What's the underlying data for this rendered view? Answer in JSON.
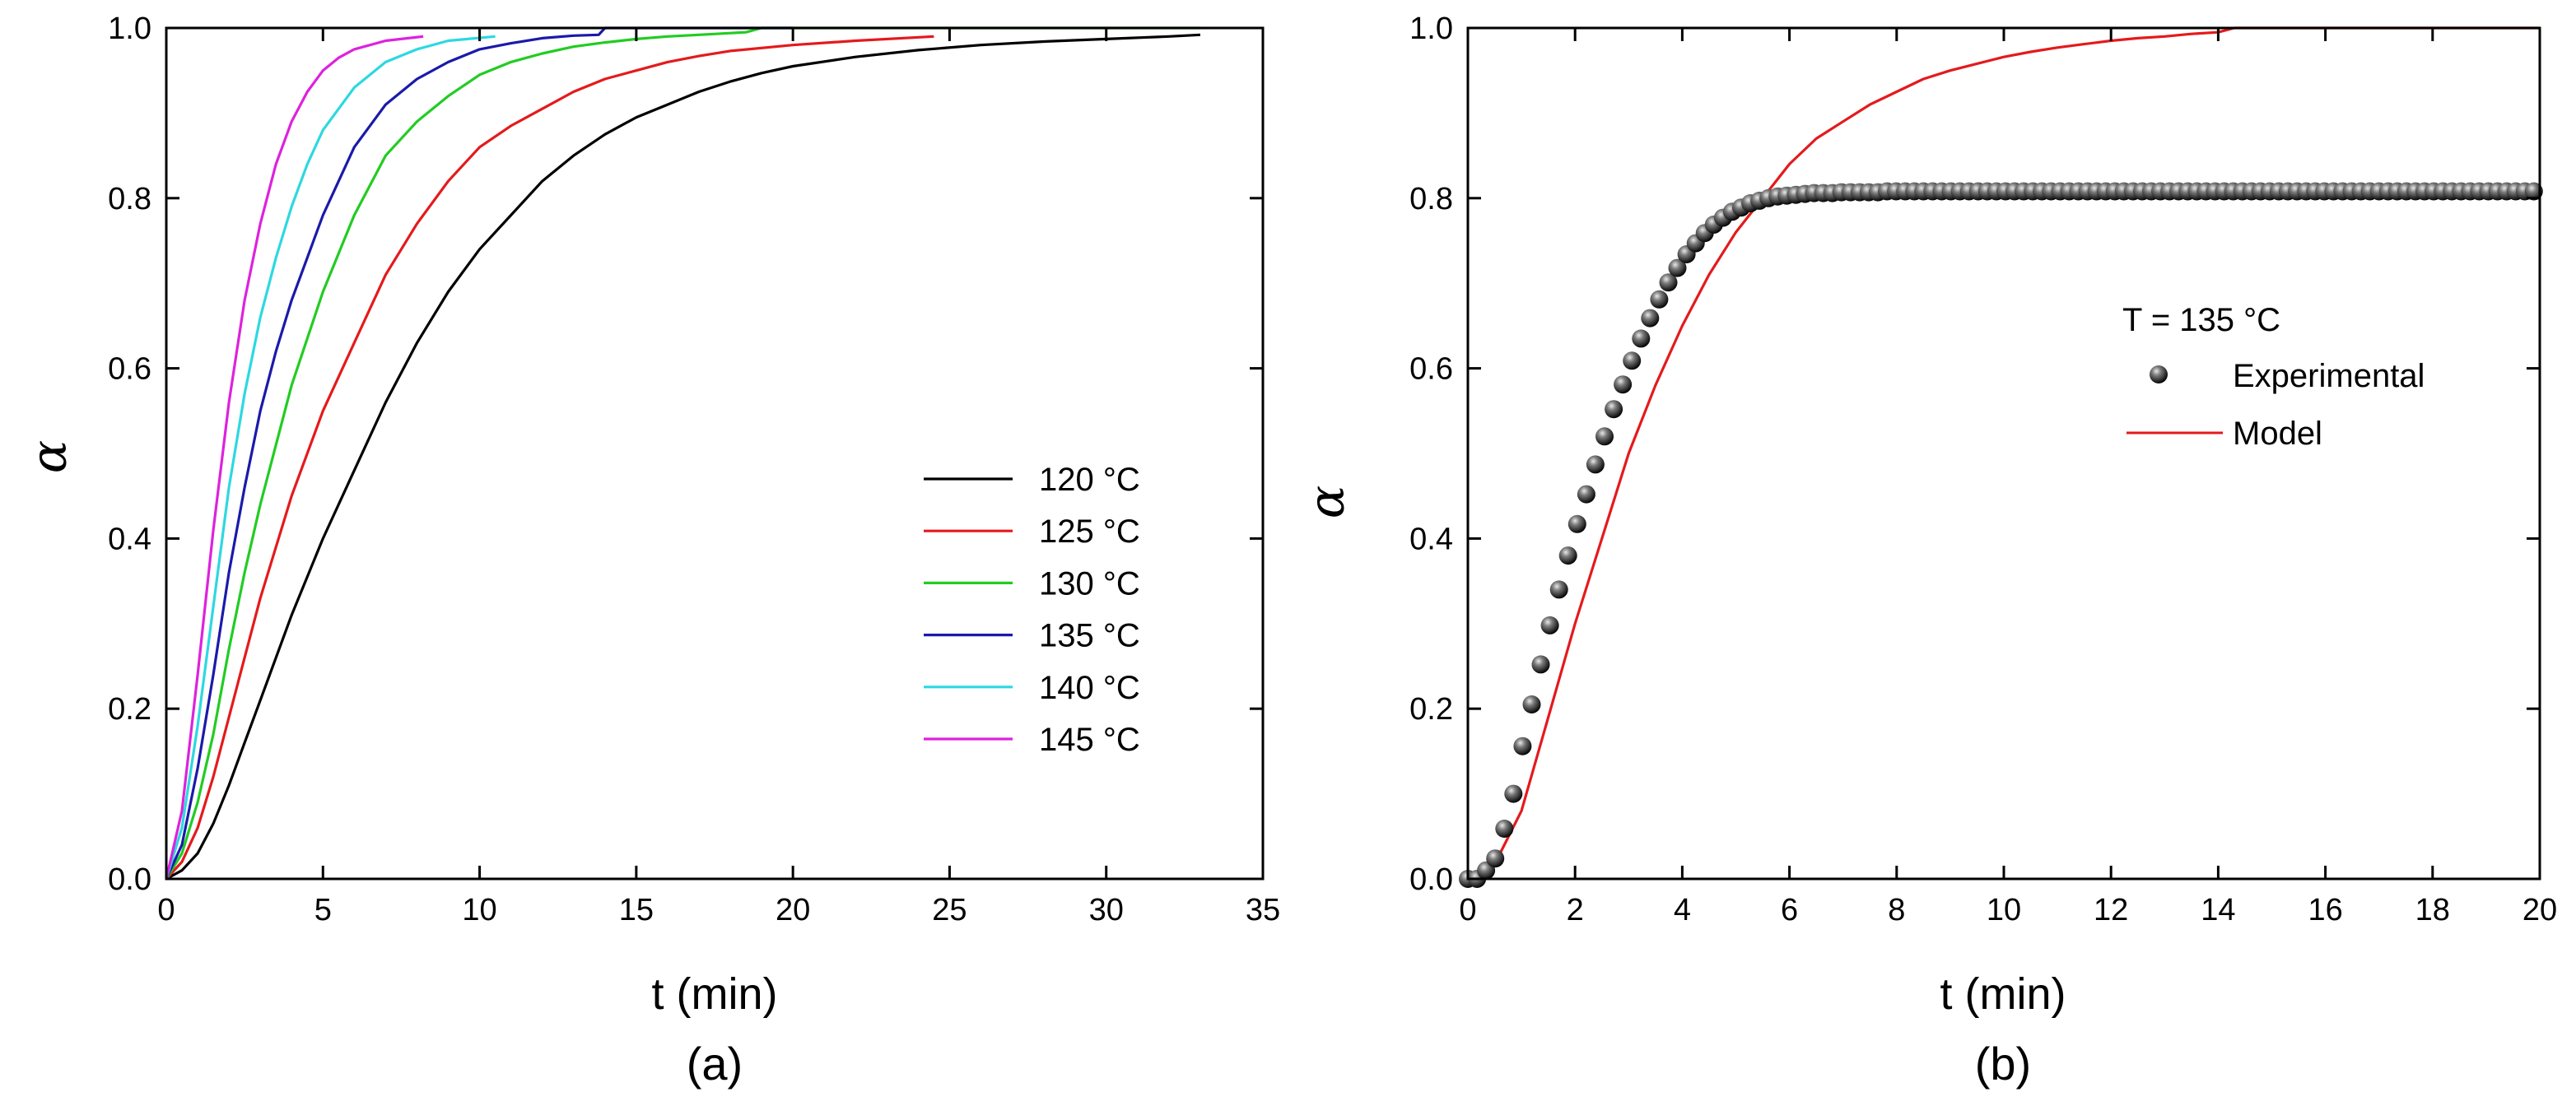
{
  "chart_data": [
    {
      "type": "line",
      "panel_label": "(a)",
      "xlabel": "t (min)",
      "ylabel": "α",
      "xlim": [
        0,
        35
      ],
      "ylim": [
        0,
        1.0
      ],
      "xticks": [
        "0",
        "5",
        "10",
        "15",
        "20",
        "25",
        "30",
        "35"
      ],
      "yticks": [
        "0.0",
        "0.2",
        "0.4",
        "0.6",
        "0.8",
        "1.0"
      ],
      "grid": false,
      "legend_position": "bottom-right",
      "series": [
        {
          "name": "120 °C",
          "color": "#000000",
          "x": [
            0,
            0.5,
            1,
            1.5,
            2,
            2.5,
            3,
            4,
            5,
            6,
            7,
            8,
            9,
            10,
            11,
            12,
            13,
            14,
            15,
            16,
            17,
            18,
            19,
            20,
            22,
            24,
            26,
            28,
            30,
            32,
            33
          ],
          "y": [
            0,
            0.01,
            0.03,
            0.065,
            0.11,
            0.16,
            0.21,
            0.31,
            0.4,
            0.48,
            0.56,
            0.63,
            0.69,
            0.74,
            0.78,
            0.82,
            0.85,
            0.875,
            0.895,
            0.91,
            0.925,
            0.937,
            0.947,
            0.955,
            0.966,
            0.974,
            0.98,
            0.984,
            0.987,
            0.99,
            0.992
          ]
        },
        {
          "name": "125 °C",
          "color": "#e41a1c",
          "x": [
            0,
            0.5,
            1,
            1.5,
            2,
            2.5,
            3,
            4,
            5,
            6,
            7,
            8,
            9,
            10,
            11,
            12,
            13,
            14,
            15,
            16,
            17,
            18,
            20,
            22,
            24.5
          ],
          "y": [
            0,
            0.02,
            0.06,
            0.12,
            0.19,
            0.26,
            0.33,
            0.45,
            0.55,
            0.63,
            0.71,
            0.77,
            0.82,
            0.86,
            0.885,
            0.905,
            0.925,
            0.94,
            0.95,
            0.96,
            0.967,
            0.973,
            0.98,
            0.985,
            0.99
          ]
        },
        {
          "name": "130 °C",
          "color": "#22cc22",
          "x": [
            0,
            0.5,
            1,
            1.5,
            2,
            2.5,
            3,
            4,
            5,
            6,
            7,
            8,
            9,
            10,
            11,
            12,
            13,
            14,
            15,
            16,
            17,
            18.5,
            19,
            22,
            26,
            30,
            33
          ],
          "y": [
            0,
            0.03,
            0.09,
            0.17,
            0.27,
            0.36,
            0.44,
            0.58,
            0.69,
            0.78,
            0.85,
            0.89,
            0.92,
            0.945,
            0.96,
            0.97,
            0.978,
            0.983,
            0.987,
            0.99,
            0.992,
            0.995,
            1.0,
            1.0,
            1.0,
            1.0,
            1.0
          ]
        },
        {
          "name": "135 °C",
          "color": "#1a1aaa",
          "x": [
            0,
            0.5,
            1,
            1.5,
            2,
            2.5,
            3,
            3.5,
            4,
            5,
            6,
            7,
            8,
            9,
            10,
            11,
            12,
            13,
            13.8,
            14,
            16,
            18,
            20
          ],
          "y": [
            0,
            0.04,
            0.13,
            0.24,
            0.36,
            0.46,
            0.55,
            0.62,
            0.68,
            0.78,
            0.86,
            0.91,
            0.94,
            0.96,
            0.975,
            0.982,
            0.988,
            0.991,
            0.992,
            1.0,
            1.0,
            1.0,
            1.0
          ]
        },
        {
          "name": "140 °C",
          "color": "#2dd8e0",
          "x": [
            0,
            0.5,
            1,
            1.5,
            2,
            2.5,
            3,
            3.5,
            4,
            4.5,
            5,
            6,
            7,
            8,
            9,
            10.5
          ],
          "y": [
            0,
            0.06,
            0.18,
            0.32,
            0.46,
            0.57,
            0.66,
            0.73,
            0.79,
            0.84,
            0.88,
            0.93,
            0.96,
            0.975,
            0.985,
            0.99
          ]
        },
        {
          "name": "145 °C",
          "color": "#dd22dd",
          "x": [
            0,
            0.5,
            1,
            1.5,
            2,
            2.5,
            3,
            3.5,
            4,
            4.5,
            5,
            5.5,
            6,
            7,
            8.2
          ],
          "y": [
            0,
            0.08,
            0.24,
            0.41,
            0.56,
            0.68,
            0.77,
            0.84,
            0.89,
            0.925,
            0.95,
            0.965,
            0.975,
            0.985,
            0.99
          ]
        }
      ]
    },
    {
      "type": "scatter",
      "panel_label": "(b)",
      "xlabel": "t (min)",
      "ylabel": "α",
      "xlim": [
        0,
        20
      ],
      "ylim": [
        0,
        1.0
      ],
      "xticks": [
        "0",
        "2",
        "4",
        "6",
        "8",
        "10",
        "12",
        "14",
        "16",
        "18",
        "20"
      ],
      "yticks": [
        "0.0",
        "0.2",
        "0.4",
        "0.6",
        "0.8",
        "1.0"
      ],
      "grid": false,
      "legend_title": "T = 135 °C",
      "legend_position": "center-right",
      "series": [
        {
          "name": "Experimental",
          "marker": "sphere",
          "color": "#000000",
          "x": [
            0.0,
            0.17,
            0.34,
            0.51,
            0.68,
            0.85,
            1.02,
            1.19,
            1.36,
            1.53,
            1.7,
            1.87,
            2.04,
            2.21,
            2.38,
            2.55,
            2.72,
            2.89,
            3.06,
            3.23,
            3.4,
            3.57,
            3.74,
            3.91,
            4.08,
            4.25,
            4.42,
            4.59,
            4.76,
            4.93,
            5.1,
            5.27,
            5.44,
            5.61,
            5.78,
            5.95,
            6.12,
            6.29,
            6.46,
            6.63,
            6.8,
            6.97,
            7.14,
            7.31,
            7.48,
            7.65,
            7.82,
            7.99,
            8.16,
            8.33,
            8.5,
            8.67,
            8.84,
            9.01,
            9.18,
            9.35,
            9.52,
            9.69,
            9.86,
            10.03,
            10.2,
            10.37,
            10.54,
            10.71,
            10.88,
            11.05,
            11.22,
            11.39,
            11.56,
            11.73,
            11.9,
            12.07,
            12.24,
            12.41,
            12.58,
            12.75,
            12.92,
            13.09,
            13.26,
            13.43,
            13.6,
            13.77,
            13.94,
            14.11,
            14.28,
            14.45,
            14.62,
            14.79,
            14.96,
            15.13,
            15.3,
            15.47,
            15.64,
            15.81,
            15.98,
            16.15,
            16.32,
            16.49,
            16.66,
            16.83,
            17.0,
            17.17,
            17.34,
            17.51,
            17.68,
            17.85,
            18.02,
            18.19,
            18.36,
            18.53,
            18.7,
            18.87,
            19.04,
            19.21,
            19.38,
            19.55,
            19.72,
            19.89
          ],
          "y": [
            0.0,
            0.0,
            0.01,
            0.024,
            0.059,
            0.1,
            0.156,
            0.205,
            0.252,
            0.298,
            0.34,
            0.38,
            0.417,
            0.452,
            0.487,
            0.52,
            0.552,
            0.581,
            0.609,
            0.635,
            0.659,
            0.681,
            0.701,
            0.718,
            0.734,
            0.747,
            0.759,
            0.769,
            0.777,
            0.784,
            0.789,
            0.794,
            0.797,
            0.8,
            0.802,
            0.803,
            0.804,
            0.805,
            0.806,
            0.806,
            0.806,
            0.807,
            0.807,
            0.807,
            0.807,
            0.807,
            0.808,
            0.808,
            0.808,
            0.808,
            0.808,
            0.808,
            0.808,
            0.808,
            0.808,
            0.808,
            0.808,
            0.808,
            0.808,
            0.808,
            0.808,
            0.808,
            0.808,
            0.808,
            0.808,
            0.808,
            0.808,
            0.808,
            0.808,
            0.808,
            0.808,
            0.808,
            0.808,
            0.808,
            0.808,
            0.808,
            0.808,
            0.808,
            0.808,
            0.808,
            0.808,
            0.808,
            0.808,
            0.808,
            0.808,
            0.808,
            0.808,
            0.808,
            0.808,
            0.808,
            0.808,
            0.808,
            0.808,
            0.808,
            0.808,
            0.808,
            0.808,
            0.808,
            0.808,
            0.808,
            0.808,
            0.808,
            0.808,
            0.808,
            0.808,
            0.808,
            0.808,
            0.808,
            0.808,
            0.808,
            0.808,
            0.808,
            0.808,
            0.808,
            0.808,
            0.808,
            0.808,
            0.808
          ]
        },
        {
          "name": "Model",
          "marker": "line",
          "color": "#e41a1c",
          "x": [
            0,
            0.3,
            0.6,
            1.0,
            1.5,
            2.0,
            2.5,
            3.0,
            3.5,
            4.0,
            4.5,
            5.0,
            5.5,
            6.0,
            6.5,
            7.0,
            7.5,
            8.0,
            8.5,
            9.0,
            9.5,
            10.0,
            10.5,
            11.0,
            11.5,
            12.0,
            12.5,
            13.0,
            13.5,
            14.0,
            14.3,
            15,
            16,
            17,
            18,
            19,
            20
          ],
          "y": [
            0,
            0.01,
            0.03,
            0.08,
            0.19,
            0.3,
            0.4,
            0.5,
            0.58,
            0.65,
            0.71,
            0.76,
            0.8,
            0.84,
            0.87,
            0.89,
            0.91,
            0.925,
            0.94,
            0.95,
            0.958,
            0.966,
            0.972,
            0.977,
            0.981,
            0.985,
            0.988,
            0.99,
            0.993,
            0.995,
            1.0,
            1.0,
            1.0,
            1.0,
            1.0,
            1.0,
            1.0
          ]
        }
      ]
    }
  ]
}
